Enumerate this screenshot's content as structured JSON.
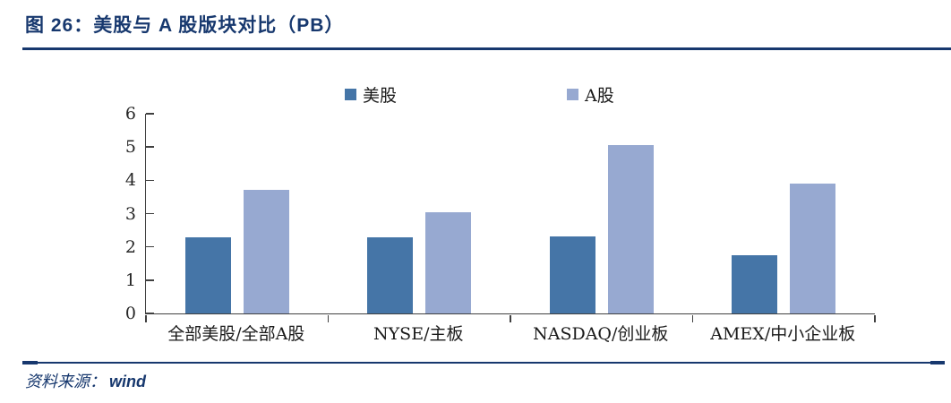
{
  "header": {
    "title": "图 26：美股与 A 股版块对比（PB）"
  },
  "footer": {
    "source_label": "资料来源：",
    "source_value": "wind"
  },
  "colors": {
    "navy": "#17386e",
    "axis": "#404040",
    "us_bar": "#4575a7",
    "a_bar": "#97a9d1"
  },
  "chart_data": {
    "type": "bar",
    "title": "美股与 A 股版块对比（PB）",
    "categories": [
      "全部美股/全部A股",
      "NYSE/主板",
      "NASDAQ/创业板",
      "AMEX/中小企业板"
    ],
    "series": [
      {
        "name": "美股",
        "color": "#4575a7",
        "values": [
          2.28,
          2.28,
          2.32,
          1.76
        ]
      },
      {
        "name": "A股",
        "color": "#97a9d1",
        "values": [
          3.7,
          3.03,
          5.05,
          3.9
        ]
      }
    ],
    "xlabel": "",
    "ylabel": "",
    "ylim": [
      0,
      6
    ],
    "ytick_interval": 1,
    "grid": false,
    "legend_position": "top"
  }
}
